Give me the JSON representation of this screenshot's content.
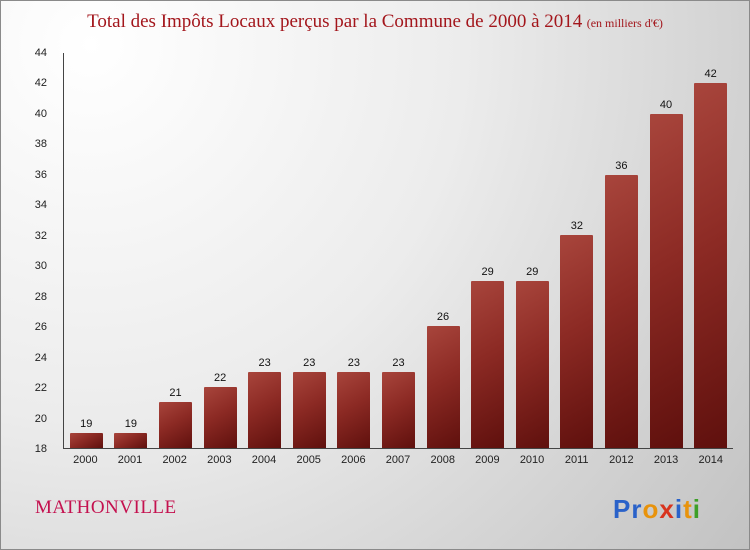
{
  "header": {
    "title": "Total des Impôts Locaux perçus par la Commune de 2000 à 2014",
    "subtitle": "(en milliers d'€)"
  },
  "footer": {
    "commune": "MATHONVILLE",
    "logo_letters": [
      {
        "char": "P",
        "color": "#2a62c9"
      },
      {
        "char": "r",
        "color": "#2a62c9"
      },
      {
        "char": "o",
        "color": "#e8930c"
      },
      {
        "char": "x",
        "color": "#d8341e"
      },
      {
        "char": "i",
        "color": "#2a62c9"
      },
      {
        "char": "t",
        "color": "#e8930c"
      },
      {
        "char": "i",
        "color": "#3d9f27"
      }
    ]
  },
  "chart_data": {
    "type": "bar",
    "title": "Total des Impôts Locaux perçus par la Commune de 2000 à 2014",
    "subtitle": "(en milliers d'€)",
    "categories": [
      "2000",
      "2001",
      "2002",
      "2003",
      "2004",
      "2005",
      "2006",
      "2007",
      "2008",
      "2009",
      "2010",
      "2011",
      "2012",
      "2013",
      "2014"
    ],
    "values": [
      19,
      19,
      21,
      22,
      23,
      23,
      23,
      23,
      26,
      29,
      29,
      32,
      36,
      40,
      42
    ],
    "xlabel": "",
    "ylabel": "",
    "ylim": [
      18,
      44
    ],
    "yticks": [
      18,
      20,
      22,
      24,
      26,
      28,
      30,
      32,
      34,
      36,
      38,
      40,
      42,
      44
    ],
    "grid": false,
    "legend": false,
    "bar_color_top": "#a8453c",
    "bar_color_bottom": "#5f100d"
  },
  "colors": {
    "title": "#a3161c",
    "commune": "#c4114f",
    "axis": "#444444",
    "tick_text": "#222222"
  }
}
